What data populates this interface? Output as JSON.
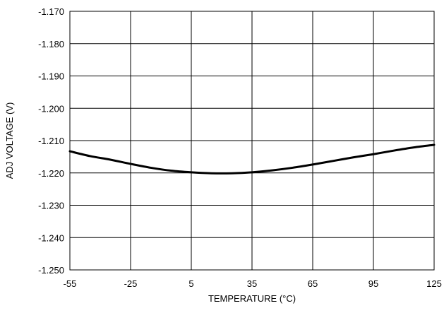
{
  "chart_data": {
    "type": "line",
    "title": "",
    "xlabel": "TEMPERATURE (°C)",
    "ylabel": "ADJ VOLTAGE (V)",
    "xlim": [
      -55,
      125
    ],
    "ylim": [
      -1.25,
      -1.17
    ],
    "x_ticks": [
      -55,
      -25,
      5,
      35,
      65,
      95,
      125
    ],
    "x_tick_labels": [
      "-55",
      "-25",
      "5",
      "35",
      "65",
      "95",
      "125"
    ],
    "y_ticks": [
      -1.17,
      -1.18,
      -1.19,
      -1.2,
      -1.21,
      -1.22,
      -1.23,
      -1.24,
      -1.25
    ],
    "y_tick_labels": [
      "-1.170",
      "-1.180",
      "-1.190",
      "-1.200",
      "-1.210",
      "-1.220",
      "-1.230",
      "-1.240",
      "-1.250"
    ],
    "grid": true,
    "series": [
      {
        "color": "#000000",
        "x": [
          -55,
          -45,
          -35,
          -25,
          -15,
          -5,
          5,
          15,
          25,
          35,
          45,
          55,
          65,
          75,
          85,
          95,
          105,
          115,
          125
        ],
        "y": [
          -1.2133,
          -1.2148,
          -1.2159,
          -1.2172,
          -1.2184,
          -1.2193,
          -1.2198,
          -1.2201,
          -1.2201,
          -1.2198,
          -1.2192,
          -1.2184,
          -1.2174,
          -1.2163,
          -1.2152,
          -1.2142,
          -1.2131,
          -1.2121,
          -1.2113
        ]
      }
    ]
  }
}
